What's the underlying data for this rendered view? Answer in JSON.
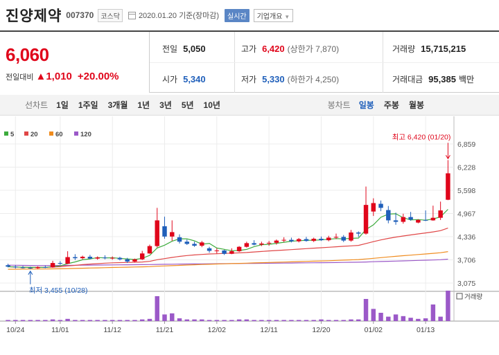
{
  "header": {
    "name": "진양제약",
    "code": "007370",
    "market": "코스닥",
    "date": "2020.01.20",
    "date_suffix": "기준(장마감)",
    "realtime": "실시간",
    "company_info": "기업개요"
  },
  "quote": {
    "price": "6,060",
    "change_label": "전일대비",
    "change_arrow": "▲",
    "change_value": "1,010",
    "change_pct": "+20.00%",
    "prev_close_label": "전일",
    "prev_close": "5,050",
    "high_label": "고가",
    "high": "6,420",
    "upper_limit": "(상한가 7,870)",
    "volume_label": "거래량",
    "volume": "15,715,215",
    "open_label": "시가",
    "open": "5,340",
    "low_label": "저가",
    "low": "5,330",
    "lower_limit": "(하한가 4,250)",
    "amount_label": "거래대금",
    "amount": "95,385",
    "amount_unit": "백만"
  },
  "period": {
    "label": "선차트",
    "items": [
      "1일",
      "1주일",
      "3개월",
      "1년",
      "3년",
      "5년",
      "10년"
    ],
    "candle_label": "봉차트",
    "candle_items": [
      "일봉",
      "주봉",
      "월봉"
    ]
  },
  "colors": {
    "up": "#e0061b",
    "down": "#1f5fba",
    "ma5": "#3dab3d",
    "ma20": "#e04646",
    "ma60": "#f08c1e",
    "ma120": "#9b59c8",
    "volume": "#9b59c8"
  },
  "chart_data": {
    "type": "candlestick",
    "legend": [
      "5",
      "20",
      "60",
      "120"
    ],
    "y_ticks": [
      "6,859",
      "6,228",
      "5,598",
      "4,967",
      "4,336",
      "3,706",
      "3,075"
    ],
    "ylim": [
      3075,
      6859
    ],
    "x_ticks": [
      "10/24",
      "11/01",
      "11/12",
      "11/21",
      "12/02",
      "12/11",
      "12/20",
      "01/02",
      "01/13"
    ],
    "x_tick_index": [
      1,
      7,
      14,
      21,
      28,
      35,
      42,
      49,
      56
    ],
    "volume_label": "거래량",
    "annotation_high": "최고 6,420 (01/20)",
    "annotation_low": "최저 3,455 (10/28)",
    "candles": [
      {
        "o": 3560,
        "h": 3600,
        "l": 3500,
        "c": 3520
      },
      {
        "o": 3520,
        "h": 3560,
        "l": 3470,
        "c": 3500
      },
      {
        "o": 3500,
        "h": 3540,
        "l": 3470,
        "c": 3490
      },
      {
        "o": 3490,
        "h": 3520,
        "l": 3455,
        "c": 3480
      },
      {
        "o": 3480,
        "h": 3530,
        "l": 3460,
        "c": 3510
      },
      {
        "o": 3510,
        "h": 3550,
        "l": 3480,
        "c": 3500
      },
      {
        "o": 3500,
        "h": 3680,
        "l": 3490,
        "c": 3620
      },
      {
        "o": 3620,
        "h": 3670,
        "l": 3570,
        "c": 3600
      },
      {
        "o": 3600,
        "h": 3940,
        "l": 3590,
        "c": 3780
      },
      {
        "o": 3780,
        "h": 3860,
        "l": 3700,
        "c": 3750
      },
      {
        "o": 3750,
        "h": 3820,
        "l": 3720,
        "c": 3790
      },
      {
        "o": 3790,
        "h": 3840,
        "l": 3720,
        "c": 3740
      },
      {
        "o": 3740,
        "h": 3800,
        "l": 3710,
        "c": 3770
      },
      {
        "o": 3770,
        "h": 3830,
        "l": 3720,
        "c": 3750
      },
      {
        "o": 3750,
        "h": 3800,
        "l": 3710,
        "c": 3760
      },
      {
        "o": 3760,
        "h": 3790,
        "l": 3690,
        "c": 3720
      },
      {
        "o": 3720,
        "h": 3760,
        "l": 3620,
        "c": 3660
      },
      {
        "o": 3660,
        "h": 3740,
        "l": 3640,
        "c": 3720
      },
      {
        "o": 3720,
        "h": 3950,
        "l": 3700,
        "c": 3880
      },
      {
        "o": 3880,
        "h": 4120,
        "l": 3870,
        "c": 4080
      },
      {
        "o": 4080,
        "h": 5120,
        "l": 4040,
        "c": 4780
      },
      {
        "o": 4620,
        "h": 4880,
        "l": 4280,
        "c": 4340
      },
      {
        "o": 4340,
        "h": 4780,
        "l": 4220,
        "c": 4460
      },
      {
        "o": 4320,
        "h": 4400,
        "l": 4150,
        "c": 4200
      },
      {
        "o": 4200,
        "h": 4260,
        "l": 4110,
        "c": 4140
      },
      {
        "o": 4140,
        "h": 4200,
        "l": 4060,
        "c": 4090
      },
      {
        "o": 4090,
        "h": 4220,
        "l": 4050,
        "c": 4180
      },
      {
        "o": 4020,
        "h": 4060,
        "l": 3900,
        "c": 3950
      },
      {
        "o": 3950,
        "h": 4020,
        "l": 3880,
        "c": 3960
      },
      {
        "o": 3960,
        "h": 3980,
        "l": 3840,
        "c": 3870
      },
      {
        "o": 3870,
        "h": 4020,
        "l": 3860,
        "c": 3940
      },
      {
        "o": 3940,
        "h": 4080,
        "l": 3920,
        "c": 4060
      },
      {
        "o": 4060,
        "h": 4200,
        "l": 4040,
        "c": 4160
      },
      {
        "o": 4160,
        "h": 4240,
        "l": 4100,
        "c": 4120
      },
      {
        "o": 4120,
        "h": 4200,
        "l": 4080,
        "c": 4150
      },
      {
        "o": 4150,
        "h": 4220,
        "l": 4090,
        "c": 4170
      },
      {
        "o": 4170,
        "h": 4260,
        "l": 4120,
        "c": 4230
      },
      {
        "o": 4230,
        "h": 4320,
        "l": 4190,
        "c": 4250
      },
      {
        "o": 4250,
        "h": 4310,
        "l": 4180,
        "c": 4210
      },
      {
        "o": 4210,
        "h": 4300,
        "l": 4180,
        "c": 4270
      },
      {
        "o": 4270,
        "h": 4330,
        "l": 4200,
        "c": 4220
      },
      {
        "o": 4220,
        "h": 4310,
        "l": 4190,
        "c": 4280
      },
      {
        "o": 4280,
        "h": 4340,
        "l": 4220,
        "c": 4240
      },
      {
        "o": 4240,
        "h": 4360,
        "l": 4210,
        "c": 4310
      },
      {
        "o": 4310,
        "h": 4420,
        "l": 4270,
        "c": 4330
      },
      {
        "o": 4330,
        "h": 4380,
        "l": 4190,
        "c": 4230
      },
      {
        "o": 4230,
        "h": 4520,
        "l": 4200,
        "c": 4450
      },
      {
        "o": 4450,
        "h": 4480,
        "l": 4330,
        "c": 4420
      },
      {
        "o": 4420,
        "h": 5700,
        "l": 4390,
        "c": 5200
      },
      {
        "o": 5020,
        "h": 5380,
        "l": 4900,
        "c": 5250
      },
      {
        "o": 5230,
        "h": 5320,
        "l": 5030,
        "c": 5120
      },
      {
        "o": 5060,
        "h": 5170,
        "l": 4700,
        "c": 4780
      },
      {
        "o": 4780,
        "h": 4990,
        "l": 4660,
        "c": 4740
      },
      {
        "o": 4740,
        "h": 4960,
        "l": 4690,
        "c": 4870
      },
      {
        "o": 4870,
        "h": 5010,
        "l": 4770,
        "c": 4800
      },
      {
        "o": 4720,
        "h": 4810,
        "l": 4700,
        "c": 4790
      },
      {
        "o": 4790,
        "h": 5050,
        "l": 4760,
        "c": 4780
      },
      {
        "o": 4780,
        "h": 5180,
        "l": 4770,
        "c": 4850
      },
      {
        "o": 4850,
        "h": 5290,
        "l": 4790,
        "c": 5050
      },
      {
        "o": 5340,
        "h": 6420,
        "l": 5330,
        "c": 6060
      }
    ],
    "ma5": [
      3520,
      3512,
      3505,
      3498,
      3500,
      3499,
      3522,
      3542,
      3602,
      3650,
      3708,
      3730,
      3768,
      3758,
      3762,
      3748,
      3730,
      3716,
      3748,
      3828,
      4028,
      4104,
      4212,
      4278,
      4278,
      4224,
      4132,
      4152,
      4028,
      3992,
      3954,
      3960,
      3990,
      4066,
      4116,
      4128,
      4156,
      4184,
      4212,
      4228,
      4236,
      4240,
      4248,
      4266,
      4284,
      4276,
      4292,
      4298,
      4530,
      4658,
      4864,
      4950,
      4960,
      4852,
      4792,
      4802,
      4784,
      4816,
      4876,
      5080
    ],
    "ma20": [
      3520,
      3510,
      3505,
      3500,
      3500,
      3500,
      3510,
      3520,
      3540,
      3555,
      3575,
      3590,
      3602,
      3615,
      3624,
      3630,
      3635,
      3640,
      3648,
      3665,
      3710,
      3740,
      3772,
      3800,
      3822,
      3840,
      3852,
      3865,
      3872,
      3880,
      3888,
      3896,
      3906,
      3920,
      3934,
      3948,
      3960,
      3972,
      3984,
      3998,
      4010,
      4024,
      4036,
      4048,
      4062,
      4074,
      4086,
      4100,
      4150,
      4200,
      4248,
      4290,
      4325,
      4356,
      4384,
      4412,
      4438,
      4466,
      4500,
      4570
    ],
    "ma60": [
      3450,
      3452,
      3454,
      3455,
      3456,
      3457,
      3460,
      3463,
      3468,
      3472,
      3478,
      3483,
      3488,
      3493,
      3498,
      3503,
      3507,
      3511,
      3516,
      3522,
      3532,
      3540,
      3548,
      3556,
      3564,
      3572,
      3580,
      3586,
      3592,
      3598,
      3604,
      3610,
      3616,
      3622,
      3628,
      3634,
      3640,
      3646,
      3652,
      3658,
      3664,
      3670,
      3676,
      3682,
      3690,
      3698,
      3706,
      3714,
      3730,
      3748,
      3766,
      3784,
      3802,
      3818,
      3834,
      3850,
      3866,
      3882,
      3900,
      3930
    ],
    "ma120": [
      3560,
      3558,
      3556,
      3554,
      3552,
      3552,
      3553,
      3554,
      3556,
      3558,
      3560,
      3562,
      3564,
      3566,
      3568,
      3570,
      3572,
      3574,
      3576,
      3578,
      3582,
      3585,
      3588,
      3590,
      3592,
      3594,
      3596,
      3598,
      3600,
      3602,
      3604,
      3606,
      3608,
      3610,
      3612,
      3614,
      3616,
      3618,
      3620,
      3622,
      3624,
      3626,
      3628,
      3630,
      3633,
      3636,
      3639,
      3642,
      3648,
      3654,
      3660,
      3666,
      3672,
      3678,
      3684,
      3690,
      3696,
      3702,
      3710,
      3725
    ],
    "volume": [
      2,
      2,
      2,
      2,
      2,
      2,
      3,
      2,
      4,
      2,
      2,
      2,
      2,
      2,
      2,
      2,
      2,
      2,
      3,
      4,
      45,
      12,
      14,
      5,
      3,
      3,
      3,
      2,
      2,
      2,
      2,
      3,
      3,
      2,
      2,
      2,
      2,
      2,
      2,
      2,
      2,
      2,
      3,
      2,
      2,
      2,
      3,
      3,
      40,
      22,
      15,
      8,
      12,
      9,
      6,
      4,
      5,
      30,
      8,
      55
    ]
  }
}
